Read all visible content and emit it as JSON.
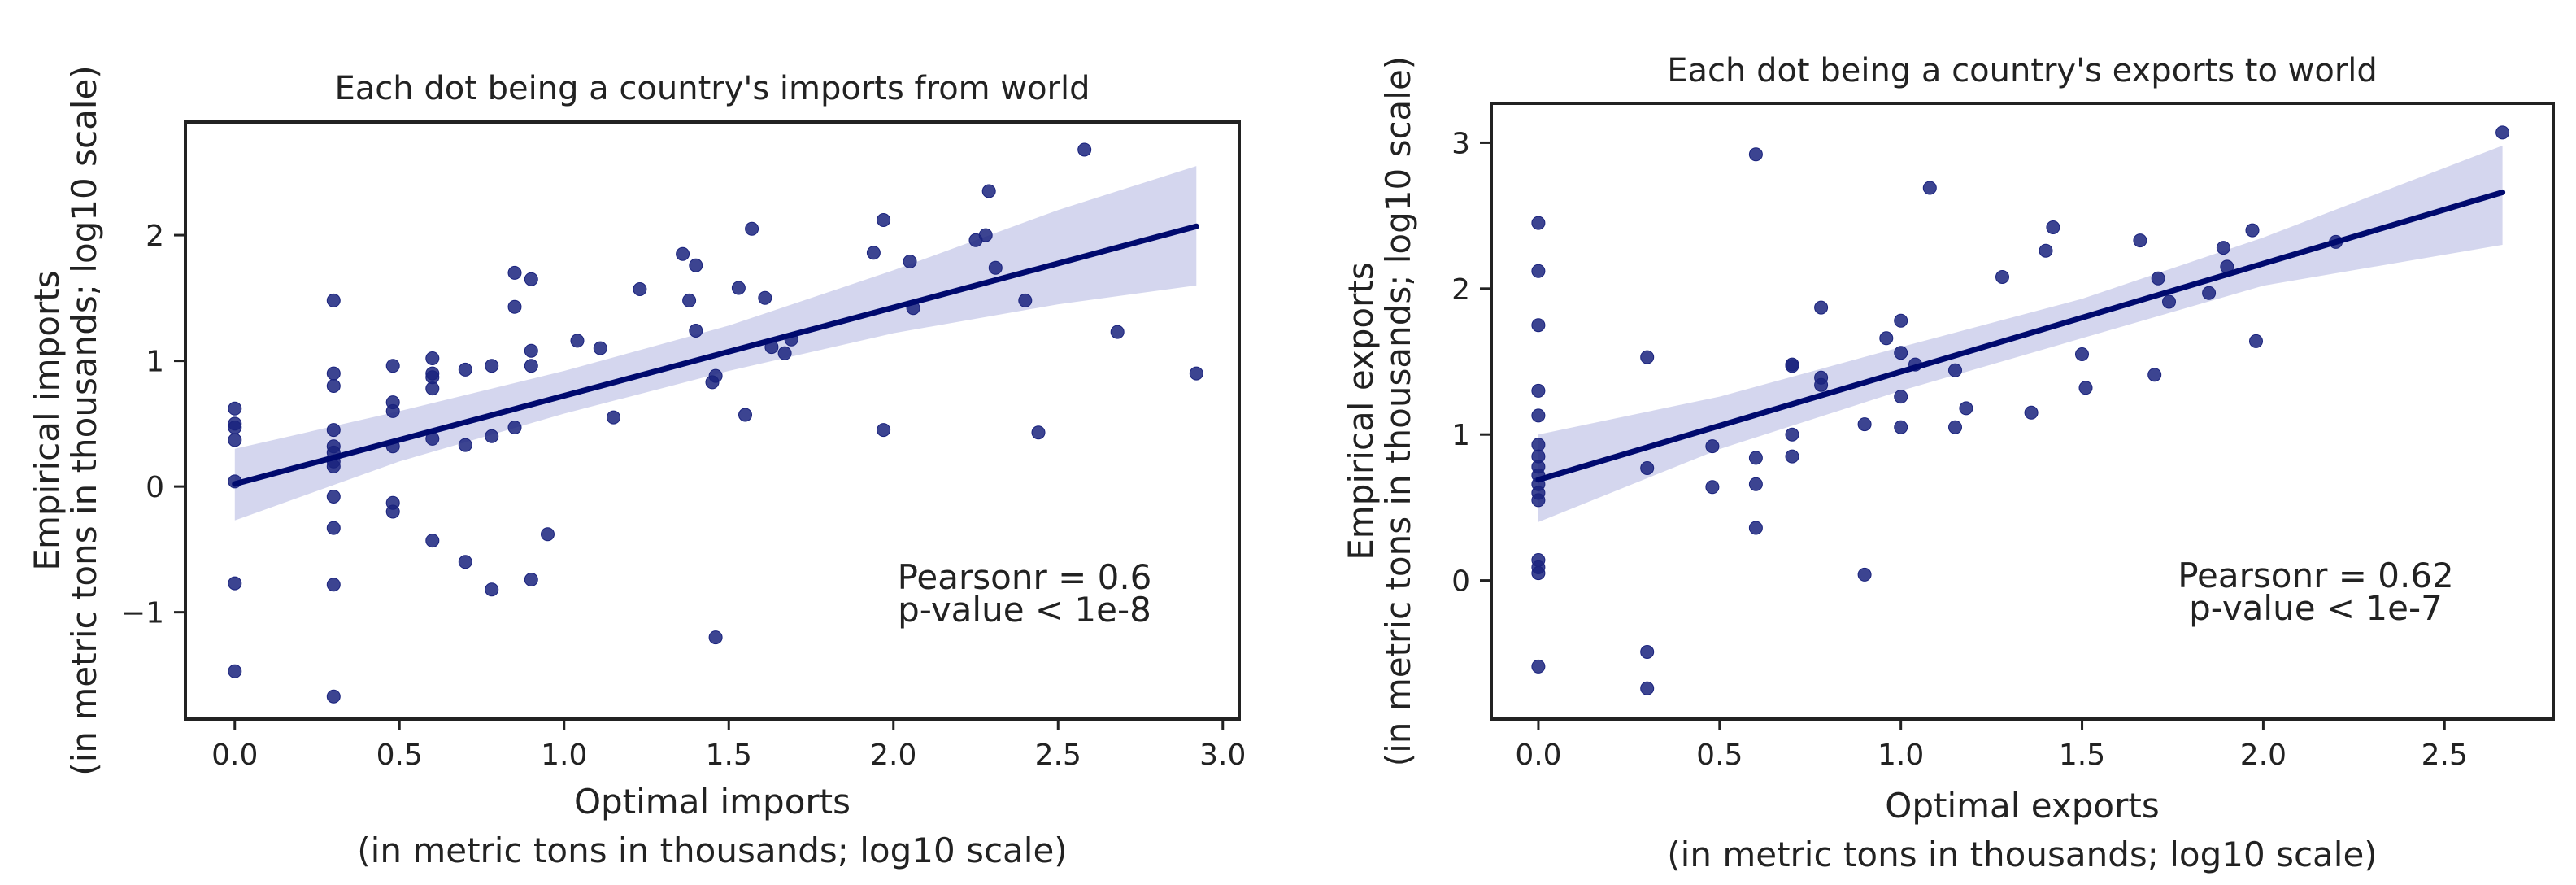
{
  "chart_data": [
    {
      "type": "scatter",
      "title": "Each dot being a country's imports from world",
      "xlabel": [
        "Optimal imports",
        "(in metric tons in thousands; log10 scale)"
      ],
      "ylabel": [
        "Empirical imports",
        "(in metric tons in thousands; log10 scale)"
      ],
      "xlim": [
        -0.15,
        3.05
      ],
      "ylim": [
        -1.85,
        2.9
      ],
      "xticks": [
        0.0,
        0.5,
        1.0,
        1.5,
        2.0,
        2.5,
        3.0
      ],
      "xtick_labels": [
        "0.0",
        "0.5",
        "1.0",
        "1.5",
        "2.0",
        "2.5",
        "3.0"
      ],
      "yticks": [
        -1,
        0,
        1,
        2
      ],
      "ytick_labels": [
        "−1",
        "0",
        "1",
        "2"
      ],
      "grid": false,
      "point_color": "#1a237e",
      "line_color": "#000a6e",
      "band_color": "#c5c8e8",
      "annotation": [
        "Pearsonr = 0.6",
        "p-value < 1e-8"
      ],
      "fit": {
        "x0": 0.0,
        "y0": 0.02,
        "x1": 2.92,
        "y1": 2.07
      },
      "ci": [
        {
          "x": 0.0,
          "lo": -0.27,
          "hi": 0.3
        },
        {
          "x": 0.5,
          "lo": 0.2,
          "hi": 0.6
        },
        {
          "x": 1.0,
          "lo": 0.58,
          "hi": 0.92
        },
        {
          "x": 1.5,
          "lo": 0.92,
          "hi": 1.28
        },
        {
          "x": 2.0,
          "lo": 1.22,
          "hi": 1.72
        },
        {
          "x": 2.5,
          "lo": 1.45,
          "hi": 2.2
        },
        {
          "x": 2.92,
          "lo": 1.6,
          "hi": 2.55
        }
      ],
      "points": [
        {
          "x": 0.0,
          "y": 0.62
        },
        {
          "x": 0.0,
          "y": 0.5
        },
        {
          "x": 0.0,
          "y": 0.47
        },
        {
          "x": 0.0,
          "y": 0.37
        },
        {
          "x": 0.0,
          "y": 0.04
        },
        {
          "x": 0.0,
          "y": -0.77
        },
        {
          "x": 0.0,
          "y": -1.47
        },
        {
          "x": 0.3,
          "y": 1.48
        },
        {
          "x": 0.3,
          "y": 0.9
        },
        {
          "x": 0.3,
          "y": 0.8
        },
        {
          "x": 0.3,
          "y": 0.45
        },
        {
          "x": 0.3,
          "y": 0.32
        },
        {
          "x": 0.3,
          "y": 0.27
        },
        {
          "x": 0.3,
          "y": 0.2
        },
        {
          "x": 0.3,
          "y": 0.16
        },
        {
          "x": 0.3,
          "y": -0.08
        },
        {
          "x": 0.3,
          "y": -0.33
        },
        {
          "x": 0.3,
          "y": -0.78
        },
        {
          "x": 0.3,
          "y": -1.67
        },
        {
          "x": 0.48,
          "y": 0.96
        },
        {
          "x": 0.48,
          "y": 0.67
        },
        {
          "x": 0.48,
          "y": 0.6
        },
        {
          "x": 0.48,
          "y": 0.32
        },
        {
          "x": 0.48,
          "y": -0.13
        },
        {
          "x": 0.48,
          "y": -0.2
        },
        {
          "x": 0.6,
          "y": 1.02
        },
        {
          "x": 0.6,
          "y": 0.9
        },
        {
          "x": 0.6,
          "y": 0.87
        },
        {
          "x": 0.6,
          "y": 0.78
        },
        {
          "x": 0.6,
          "y": 0.38
        },
        {
          "x": 0.6,
          "y": -0.43
        },
        {
          "x": 0.7,
          "y": 0.93
        },
        {
          "x": 0.7,
          "y": 0.33
        },
        {
          "x": 0.7,
          "y": -0.6
        },
        {
          "x": 0.78,
          "y": 0.96
        },
        {
          "x": 0.78,
          "y": 0.4
        },
        {
          "x": 0.78,
          "y": -0.82
        },
        {
          "x": 0.85,
          "y": 1.7
        },
        {
          "x": 0.85,
          "y": 1.43
        },
        {
          "x": 0.85,
          "y": 0.47
        },
        {
          "x": 0.9,
          "y": 1.65
        },
        {
          "x": 0.9,
          "y": 1.08
        },
        {
          "x": 0.9,
          "y": 0.96
        },
        {
          "x": 0.9,
          "y": -0.74
        },
        {
          "x": 0.95,
          "y": -0.38
        },
        {
          "x": 1.04,
          "y": 1.16
        },
        {
          "x": 1.11,
          "y": 1.1
        },
        {
          "x": 1.15,
          "y": 0.55
        },
        {
          "x": 1.23,
          "y": 1.57
        },
        {
          "x": 1.36,
          "y": 1.85
        },
        {
          "x": 1.38,
          "y": 1.48
        },
        {
          "x": 1.4,
          "y": 1.76
        },
        {
          "x": 1.4,
          "y": 1.24
        },
        {
          "x": 1.45,
          "y": 0.83
        },
        {
          "x": 1.46,
          "y": 0.88
        },
        {
          "x": 1.46,
          "y": -1.2
        },
        {
          "x": 1.53,
          "y": 1.58
        },
        {
          "x": 1.55,
          "y": 0.57
        },
        {
          "x": 1.57,
          "y": 2.05
        },
        {
          "x": 1.61,
          "y": 1.5
        },
        {
          "x": 1.63,
          "y": 1.11
        },
        {
          "x": 1.67,
          "y": 1.06
        },
        {
          "x": 1.69,
          "y": 1.17
        },
        {
          "x": 1.94,
          "y": 1.86
        },
        {
          "x": 1.97,
          "y": 2.12
        },
        {
          "x": 1.97,
          "y": 0.45
        },
        {
          "x": 2.05,
          "y": 1.79
        },
        {
          "x": 2.06,
          "y": 1.42
        },
        {
          "x": 2.25,
          "y": 1.96
        },
        {
          "x": 2.28,
          "y": 2.0
        },
        {
          "x": 2.29,
          "y": 2.35
        },
        {
          "x": 2.31,
          "y": 1.74
        },
        {
          "x": 2.4,
          "y": 1.48
        },
        {
          "x": 2.44,
          "y": 0.43
        },
        {
          "x": 2.58,
          "y": 2.68
        },
        {
          "x": 2.68,
          "y": 1.23
        },
        {
          "x": 2.92,
          "y": 0.9
        }
      ]
    },
    {
      "type": "scatter",
      "title": "Each dot being a country's exports to world",
      "xlabel": [
        "Optimal exports",
        "(in metric tons in thousands; log10 scale)"
      ],
      "ylabel": [
        "Empirical exports",
        "(in metric tons in thousands; log10 scale)"
      ],
      "xlim": [
        -0.13,
        2.8
      ],
      "ylim": [
        -0.95,
        3.27
      ],
      "xticks": [
        0.0,
        0.5,
        1.0,
        1.5,
        2.0,
        2.5
      ],
      "xtick_labels": [
        "0.0",
        "0.5",
        "1.0",
        "1.5",
        "2.0",
        "2.5"
      ],
      "yticks": [
        0,
        1,
        2,
        3
      ],
      "ytick_labels": [
        "0",
        "1",
        "2",
        "3"
      ],
      "grid": false,
      "point_color": "#1a237e",
      "line_color": "#000a6e",
      "band_color": "#c5c8e8",
      "annotation": [
        "Pearsonr = 0.62",
        "p-value < 1e-7"
      ],
      "fit": {
        "x0": 0.0,
        "y0": 0.69,
        "x1": 2.66,
        "y1": 2.66
      },
      "ci": [
        {
          "x": 0.0,
          "lo": 0.4,
          "hi": 1.0
        },
        {
          "x": 0.5,
          "lo": 0.9,
          "hi": 1.26
        },
        {
          "x": 1.0,
          "lo": 1.3,
          "hi": 1.6
        },
        {
          "x": 1.5,
          "lo": 1.66,
          "hi": 1.93
        },
        {
          "x": 2.0,
          "lo": 2.02,
          "hi": 2.35
        },
        {
          "x": 2.66,
          "lo": 2.3,
          "hi": 2.98
        }
      ],
      "points": [
        {
          "x": 0.0,
          "y": 2.45
        },
        {
          "x": 0.0,
          "y": 2.12
        },
        {
          "x": 0.0,
          "y": 1.75
        },
        {
          "x": 0.0,
          "y": 1.3
        },
        {
          "x": 0.0,
          "y": 1.13
        },
        {
          "x": 0.0,
          "y": 0.93
        },
        {
          "x": 0.0,
          "y": 0.85
        },
        {
          "x": 0.0,
          "y": 0.78
        },
        {
          "x": 0.0,
          "y": 0.72
        },
        {
          "x": 0.0,
          "y": 0.66
        },
        {
          "x": 0.0,
          "y": 0.6
        },
        {
          "x": 0.0,
          "y": 0.55
        },
        {
          "x": 0.0,
          "y": 0.14
        },
        {
          "x": 0.0,
          "y": 0.09
        },
        {
          "x": 0.0,
          "y": 0.05
        },
        {
          "x": 0.0,
          "y": -0.59
        },
        {
          "x": 0.3,
          "y": 1.53
        },
        {
          "x": 0.3,
          "y": 0.77
        },
        {
          "x": 0.3,
          "y": -0.49
        },
        {
          "x": 0.3,
          "y": -0.74
        },
        {
          "x": 0.48,
          "y": 0.92
        },
        {
          "x": 0.48,
          "y": 0.64
        },
        {
          "x": 0.6,
          "y": 2.92
        },
        {
          "x": 0.6,
          "y": 0.84
        },
        {
          "x": 0.6,
          "y": 0.66
        },
        {
          "x": 0.6,
          "y": 0.36
        },
        {
          "x": 0.7,
          "y": 1.48
        },
        {
          "x": 0.7,
          "y": 1.47
        },
        {
          "x": 0.7,
          "y": 1.0
        },
        {
          "x": 0.7,
          "y": 0.85
        },
        {
          "x": 0.78,
          "y": 1.87
        },
        {
          "x": 0.78,
          "y": 1.39
        },
        {
          "x": 0.78,
          "y": 1.34
        },
        {
          "x": 0.9,
          "y": 1.07
        },
        {
          "x": 0.9,
          "y": 0.04
        },
        {
          "x": 0.96,
          "y": 1.66
        },
        {
          "x": 1.0,
          "y": 1.78
        },
        {
          "x": 1.0,
          "y": 1.56
        },
        {
          "x": 1.0,
          "y": 1.26
        },
        {
          "x": 1.0,
          "y": 1.05
        },
        {
          "x": 1.04,
          "y": 1.48
        },
        {
          "x": 1.08,
          "y": 2.69
        },
        {
          "x": 1.15,
          "y": 1.44
        },
        {
          "x": 1.15,
          "y": 1.05
        },
        {
          "x": 1.18,
          "y": 1.18
        },
        {
          "x": 1.28,
          "y": 2.08
        },
        {
          "x": 1.36,
          "y": 1.15
        },
        {
          "x": 1.4,
          "y": 2.26
        },
        {
          "x": 1.42,
          "y": 2.42
        },
        {
          "x": 1.5,
          "y": 1.55
        },
        {
          "x": 1.51,
          "y": 1.32
        },
        {
          "x": 1.66,
          "y": 2.33
        },
        {
          "x": 1.7,
          "y": 1.41
        },
        {
          "x": 1.71,
          "y": 2.07
        },
        {
          "x": 1.74,
          "y": 1.91
        },
        {
          "x": 1.85,
          "y": 1.97
        },
        {
          "x": 1.89,
          "y": 2.28
        },
        {
          "x": 1.9,
          "y": 2.15
        },
        {
          "x": 1.97,
          "y": 2.4
        },
        {
          "x": 1.98,
          "y": 1.64
        },
        {
          "x": 2.2,
          "y": 2.32
        },
        {
          "x": 2.66,
          "y": 3.07
        }
      ]
    }
  ]
}
